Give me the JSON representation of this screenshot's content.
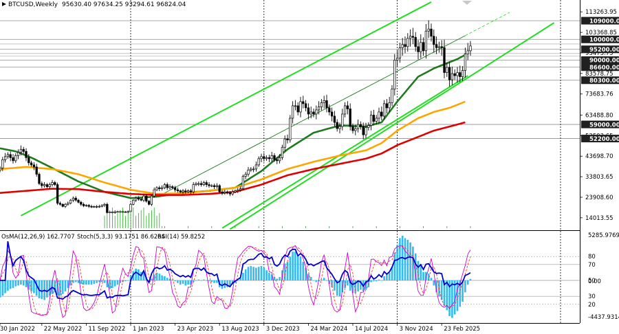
{
  "header": {
    "symbol_timeframe": "BTCUSD,Weekly",
    "ohlc": "95630.40 97634.25 93294.61 96824.04"
  },
  "indicator_header": {
    "osma": "OsMA(12,26,9) 162.7707",
    "stoch": "Stoch(5,3,3) 93.1751 86.6264",
    "rsi": "RSI(14) 59.8252"
  },
  "colors": {
    "candle": "#000000",
    "ma_fast": "#1e7a1e",
    "ma_mid": "#ffa500",
    "ma_slow": "#e00000",
    "channel": "#22dd22",
    "osma": "#33bbee",
    "rsi": "#0000cc",
    "stoch_main": "#cc00cc",
    "stoch_signal": "#ff3333",
    "level_box": "#202020"
  },
  "chart_data": {
    "type": "candlestick",
    "title": "BTCUSD,Weekly",
    "ylim": [
      9000,
      115000
    ],
    "price_ticks": [
      {
        "v": 113263.95,
        "label": "113263.95"
      },
      {
        "v": 103368.85,
        "label": "103368.85"
      },
      {
        "v": 93473.75,
        "label": "93473.75"
      },
      {
        "v": 83578.75,
        "label": "83578.75"
      },
      {
        "v": 73683.76,
        "label": "73683.76"
      },
      {
        "v": 63488.8,
        "label": "63488.80"
      },
      {
        "v": 53593.65,
        "label": "53593.65"
      },
      {
        "v": 43698.7,
        "label": "43698.70"
      },
      {
        "v": 33803.65,
        "label": "33803.65"
      },
      {
        "v": 23908.6,
        "label": "23908.60"
      },
      {
        "v": 14013.55,
        "label": "14013.55"
      }
    ],
    "levels": [
      {
        "v": 109000,
        "label": "109000.00"
      },
      {
        "v": 100000,
        "label": "100000.00"
      },
      {
        "v": 95200,
        "label": "95200.00"
      },
      {
        "v": 90000,
        "label": "90000.00"
      },
      {
        "v": 86600,
        "label": "86600.00"
      },
      {
        "v": 80300,
        "label": "80300.00"
      },
      {
        "v": 59000,
        "label": "59000.00"
      },
      {
        "v": 52200,
        "label": "52200.00"
      }
    ],
    "faint_levels": [
      97800,
      93200,
      91900
    ],
    "x_labels": [
      "30 Jan 2022",
      "22 May 2022",
      "11 Sep 2022",
      "1 Jan 2023",
      "23 Apr 2023",
      "13 Aug 2023",
      "3 Dec 2023",
      "24 Mar 2024",
      "14 Jul 2024",
      "3 Nov 2024",
      "23 Feb 2025"
    ],
    "vertical_markers": [
      "1 Jan 2023",
      "3 Dec 2023",
      "3 Nov 2024"
    ],
    "weekly_close": [
      38000,
      42000,
      43500,
      44500,
      43000,
      41500,
      44000,
      45500,
      47000,
      46000,
      43000,
      40500,
      39500,
      38500,
      35000,
      30500,
      29500,
      30000,
      29000,
      30000,
      31000,
      30000,
      21000,
      20500,
      19500,
      20500,
      21000,
      22500,
      23500,
      22500,
      21500,
      20500,
      19800,
      20000,
      19500,
      19300,
      19400,
      19500,
      19500,
      20000,
      20500,
      16500,
      16800,
      16500,
      16900,
      17000,
      17000,
      16800,
      16900,
      17000,
      20500,
      22500,
      23500,
      23000,
      22500,
      24500,
      22000,
      20500,
      24500,
      27500,
      28500,
      28000,
      28500,
      30000,
      28500,
      29000,
      28500,
      27500,
      27000,
      26500,
      27000,
      26500,
      27000,
      26500,
      30000,
      30500,
      30500,
      30000,
      31000,
      30000,
      29500,
      29500,
      29000,
      29500,
      26500,
      26000,
      26500,
      26000,
      25500,
      26500,
      27000,
      27500,
      28000,
      34000,
      35000,
      37000,
      37500,
      37500,
      39500,
      42500,
      43500,
      42500,
      43000,
      42500,
      44000,
      42000,
      41500,
      43000,
      48000,
      52000,
      51500,
      62000,
      68000,
      68000,
      65000,
      70000,
      69000,
      67000,
      64000,
      65000,
      64000,
      66000,
      67500,
      69500,
      70500,
      67000,
      65000,
      63000,
      60000,
      57000,
      58000,
      64000,
      68000,
      66500,
      58000,
      56000,
      57000,
      59000,
      58000,
      54000,
      57500,
      58500,
      63500,
      60500,
      62000,
      65000,
      63000,
      69000,
      67000,
      69500,
      76000,
      90000,
      91000,
      96000,
      97500,
      96500,
      100500,
      101500,
      101000,
      96500,
      94000,
      98500,
      94500,
      104000,
      105000,
      101500,
      97500,
      96000,
      96500,
      96000,
      84000,
      86500,
      80500,
      83500,
      82500,
      84000,
      82000,
      85000,
      93000,
      94500,
      96824
    ],
    "osma": [
      -2000,
      -1800,
      -1500,
      -1200,
      -1000,
      -900,
      -700,
      -600,
      -500,
      -600,
      -800,
      -1100,
      -1300,
      -1500,
      -1800,
      -2100,
      -2200,
      -2300,
      -2000,
      -1800,
      -1600,
      -1400,
      -1700,
      -1800,
      -1600,
      -1300,
      -900,
      -600,
      -300,
      -200,
      -300,
      -400,
      -500,
      -500,
      -500,
      -500,
      -400,
      -300,
      -200,
      -200,
      -300,
      -800,
      -1000,
      -900,
      -700,
      -500,
      -300,
      -200,
      -100,
      0,
      600,
      1100,
      1400,
      1300,
      1000,
      900,
      400,
      -100,
      200,
      700,
      900,
      800,
      600,
      500,
      300,
      200,
      100,
      -100,
      -300,
      -500,
      -400,
      -600,
      -500,
      -500,
      -200,
      0,
      100,
      0,
      100,
      0,
      -100,
      -200,
      -300,
      -300,
      -800,
      -1000,
      -900,
      -800,
      -700,
      -500,
      -300,
      0,
      300,
      900,
      1300,
      1600,
      1700,
      1600,
      1500,
      1600,
      1700,
      1500,
      1200,
      900,
      700,
      400,
      200,
      400,
      1200,
      2000,
      2200,
      2800,
      3400,
      3400,
      3000,
      2800,
      2200,
      1500,
      800,
      400,
      0,
      -200,
      -100,
      100,
      300,
      0,
      -400,
      -800,
      -1200,
      -1800,
      -1900,
      -1400,
      -900,
      -600,
      -1200,
      -1500,
      -1500,
      -1300,
      -1100,
      -1300,
      -1100,
      -800,
      -200,
      -100,
      -100,
      100,
      0,
      500,
      800,
      900,
      1600,
      3300,
      4200,
      5000,
      5285,
      5000,
      4800,
      4500,
      4000,
      3200,
      2300,
      1800,
      1000,
      1000,
      800,
      300,
      -600,
      -1400,
      -1900,
      -2300,
      -3000,
      -3500,
      -4200,
      -4400,
      -4000,
      -3600,
      -3100,
      -2500,
      -1400,
      -500,
      162.77
    ],
    "osma_ylim": [
      -4437.9314,
      5285.9769
    ],
    "osma_ticks": [
      {
        "v": 5285.9769,
        "label": "5285.9769"
      },
      {
        "v": 0,
        "label": "0.00"
      },
      {
        "v": -4437.9314,
        "label": "-4437.9314"
      }
    ],
    "osc_levels": [
      {
        "v": 80,
        "label": "80"
      },
      {
        "v": 70,
        "label": "70"
      },
      {
        "v": 50,
        "label": "50"
      },
      {
        "v": 30,
        "label": "30"
      },
      {
        "v": 20,
        "label": "20"
      }
    ],
    "moving_averages": [
      {
        "key": "ma_fast",
        "knots": [
          [
            0,
            47500
          ],
          [
            6,
            46000
          ],
          [
            12,
            43000
          ],
          [
            20,
            38000
          ],
          [
            30,
            31500
          ],
          [
            40,
            26500
          ],
          [
            50,
            23500
          ],
          [
            60,
            24200
          ],
          [
            70,
            26000
          ],
          [
            80,
            27000
          ],
          [
            90,
            28500
          ],
          [
            100,
            36500
          ],
          [
            110,
            47000
          ],
          [
            120,
            55000
          ],
          [
            130,
            58500
          ],
          [
            140,
            58000
          ],
          [
            146,
            60000
          ],
          [
            152,
            70000
          ],
          [
            160,
            82000
          ],
          [
            166,
            86000
          ],
          [
            170,
            88000
          ],
          [
            175,
            90500
          ],
          [
            178,
            92500
          ]
        ]
      },
      {
        "key": "ma_mid",
        "knots": [
          [
            0,
            37500
          ],
          [
            10,
            38500
          ],
          [
            20,
            37500
          ],
          [
            30,
            35000
          ],
          [
            40,
            31000
          ],
          [
            50,
            27500
          ],
          [
            60,
            25500
          ],
          [
            70,
            25800
          ],
          [
            80,
            27000
          ],
          [
            90,
            28500
          ],
          [
            100,
            32500
          ],
          [
            110,
            37500
          ],
          [
            120,
            41000
          ],
          [
            130,
            44000
          ],
          [
            140,
            46500
          ],
          [
            146,
            50000
          ],
          [
            152,
            56000
          ],
          [
            160,
            62000
          ],
          [
            166,
            65000
          ],
          [
            172,
            67000
          ],
          [
            178,
            70000
          ]
        ]
      },
      {
        "key": "ma_slow",
        "knots": [
          [
            0,
            26000
          ],
          [
            10,
            27000
          ],
          [
            20,
            28000
          ],
          [
            30,
            27800
          ],
          [
            40,
            26500
          ],
          [
            50,
            25500
          ],
          [
            60,
            25000
          ],
          [
            70,
            25000
          ],
          [
            80,
            25500
          ],
          [
            90,
            26500
          ],
          [
            100,
            30000
          ],
          [
            110,
            34500
          ],
          [
            120,
            37500
          ],
          [
            130,
            40000
          ],
          [
            140,
            42500
          ],
          [
            146,
            45000
          ],
          [
            152,
            49000
          ],
          [
            160,
            53000
          ],
          [
            166,
            56000
          ],
          [
            172,
            58000
          ],
          [
            178,
            60000
          ]
        ]
      }
    ],
    "channel_lines": [
      {
        "key": "main_upper",
        "from": [
          8,
          15000
        ],
        "to": [
          165,
          118000
        ]
      },
      {
        "key": "main_lower",
        "from": [
          85,
          9000
        ],
        "to": [
          179,
          82500
        ]
      },
      {
        "key": "outer_lower",
        "from": [
          88,
          8500
        ],
        "to": [
          212,
          108000
        ]
      }
    ],
    "midline": {
      "from": [
        60,
        24000
      ],
      "to": [
        195,
        113000
      ]
    }
  }
}
